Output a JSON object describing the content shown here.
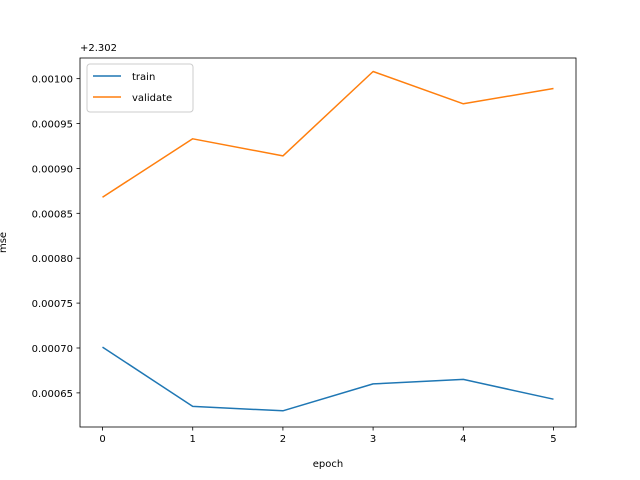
{
  "chart_data": {
    "type": "line",
    "title": "",
    "xlabel": "epoch",
    "ylabel": "mse",
    "offset_label": "+2.302",
    "x": [
      0,
      1,
      2,
      3,
      4,
      5
    ],
    "xlim": [
      -0.25,
      5.25
    ],
    "ylim": [
      0.000612,
      0.001023
    ],
    "xticks": [
      0,
      1,
      2,
      3,
      4,
      5
    ],
    "yticks": [
      0.00065,
      0.0007,
      0.00075,
      0.0008,
      0.00085,
      0.0009,
      0.00095,
      0.001
    ],
    "ytick_labels": [
      "0.00065",
      "0.00070",
      "0.00075",
      "0.00080",
      "0.00085",
      "0.00090",
      "0.00095",
      "0.00100"
    ],
    "grid": false,
    "legend_position": "top-left",
    "series": [
      {
        "name": "train",
        "color": "#1f77b4",
        "values": [
          0.000701,
          0.000635,
          0.00063,
          0.00066,
          0.000665,
          0.000643
        ]
      },
      {
        "name": "validate",
        "color": "#ff7f0e",
        "values": [
          0.000868,
          0.000933,
          0.000914,
          0.001008,
          0.000972,
          0.000989
        ]
      }
    ]
  }
}
